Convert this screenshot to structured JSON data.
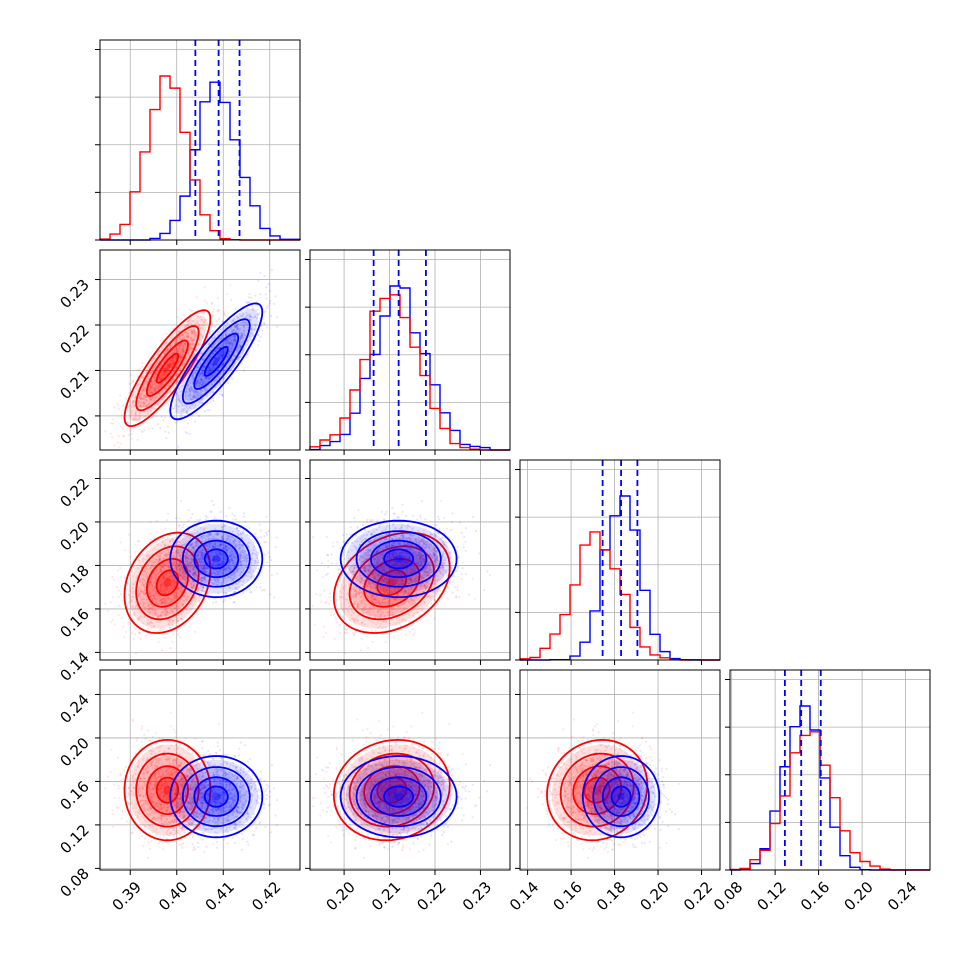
{
  "chart_data": {
    "type": "corner",
    "series": [
      {
        "name": "",
        "color": "#ff0000",
        "mean": [
          0.398,
          0.2105,
          0.172,
          0.152
        ],
        "std": [
          0.0042,
          0.0058,
          0.0105,
          0.021
        ],
        "rho": [
          [
            1,
            0.85,
            0.25,
            0.0
          ],
          [
            0.85,
            1,
            0.3,
            0.1
          ],
          [
            0.25,
            0.3,
            1,
            0.1
          ],
          [
            0.0,
            0.1,
            0.1,
            1
          ]
        ]
      },
      {
        "name": "",
        "color": "#0000ff",
        "mean": [
          0.4085,
          0.212,
          0.183,
          0.146
        ],
        "std": [
          0.0045,
          0.0058,
          0.008,
          0.017
        ],
        "rho": [
          [
            1,
            0.85,
            0.0,
            0.0
          ],
          [
            0.85,
            1,
            0.0,
            0.0
          ],
          [
            0.0,
            0.0,
            1,
            0.0
          ],
          [
            0.0,
            0.0,
            0.0,
            1
          ]
        ]
      }
    ],
    "quantiles": [
      [
        0.404,
        0.409,
        0.4135
      ],
      [
        0.2065,
        0.212,
        0.218
      ],
      [
        0.1745,
        0.183,
        0.1905
      ],
      [
        0.129,
        0.144,
        0.162
      ]
    ],
    "axes": [
      {
        "range": [
          0.3835,
          0.4265
        ],
        "ticks": [
          0.39,
          0.4,
          0.41,
          0.42
        ],
        "tick_labels": [
          "0.39",
          "0.40",
          "0.41",
          "0.42"
        ]
      },
      {
        "range": [
          0.1925,
          0.2365
        ],
        "ticks": [
          0.2,
          0.21,
          0.22,
          0.23
        ],
        "tick_labels": [
          "0.20",
          "0.21",
          "0.22",
          "0.23"
        ]
      },
      {
        "range": [
          0.1365,
          0.2285
        ],
        "ticks": [
          0.14,
          0.16,
          0.18,
          0.2,
          0.22
        ],
        "tick_labels": [
          "0.14",
          "0.16",
          "0.18",
          "0.20",
          "0.22"
        ]
      },
      {
        "range": [
          0.0785,
          0.2625
        ],
        "ticks": [
          0.08,
          0.12,
          0.16,
          0.2,
          0.24
        ],
        "tick_labels": [
          "0.08",
          "0.12",
          "0.16",
          "0.20",
          "0.24"
        ]
      }
    ],
    "grid": true
  }
}
